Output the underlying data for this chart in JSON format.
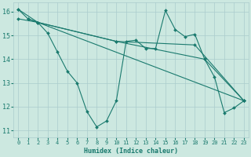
{
  "title": "",
  "xlabel": "Humidex (Indice chaleur)",
  "background_color": "#cce8e0",
  "grid_color": "#aacccc",
  "line_color": "#1a7a6e",
  "xlim": [
    -0.5,
    23.5
  ],
  "ylim": [
    10.7,
    16.4
  ],
  "xticks": [
    0,
    1,
    2,
    3,
    4,
    5,
    6,
    7,
    8,
    9,
    10,
    11,
    12,
    13,
    14,
    15,
    16,
    17,
    18,
    19,
    20,
    21,
    22,
    23
  ],
  "yticks": [
    11,
    12,
    13,
    14,
    15,
    16
  ],
  "line1": {
    "x": [
      0,
      1,
      2,
      3,
      4,
      5,
      6,
      7,
      8,
      9,
      10,
      11,
      12,
      13,
      14,
      15,
      16,
      17,
      18,
      19,
      20,
      21,
      22,
      23
    ],
    "y": [
      16.1,
      15.7,
      15.55,
      15.1,
      14.3,
      13.5,
      13.0,
      11.8,
      11.15,
      11.4,
      12.25,
      14.75,
      14.8,
      14.45,
      14.45,
      16.05,
      15.25,
      14.95,
      15.05,
      14.0,
      13.25,
      11.75,
      11.95,
      12.25
    ]
  },
  "line2": {
    "x": [
      0,
      2,
      23
    ],
    "y": [
      16.1,
      15.55,
      12.25
    ]
  },
  "line3": {
    "x": [
      0,
      2,
      10,
      18,
      23
    ],
    "y": [
      15.7,
      15.55,
      14.75,
      14.6,
      12.25
    ]
  },
  "line4": {
    "x": [
      1,
      2,
      10,
      19,
      23
    ],
    "y": [
      15.7,
      15.55,
      14.75,
      14.0,
      12.25
    ]
  }
}
